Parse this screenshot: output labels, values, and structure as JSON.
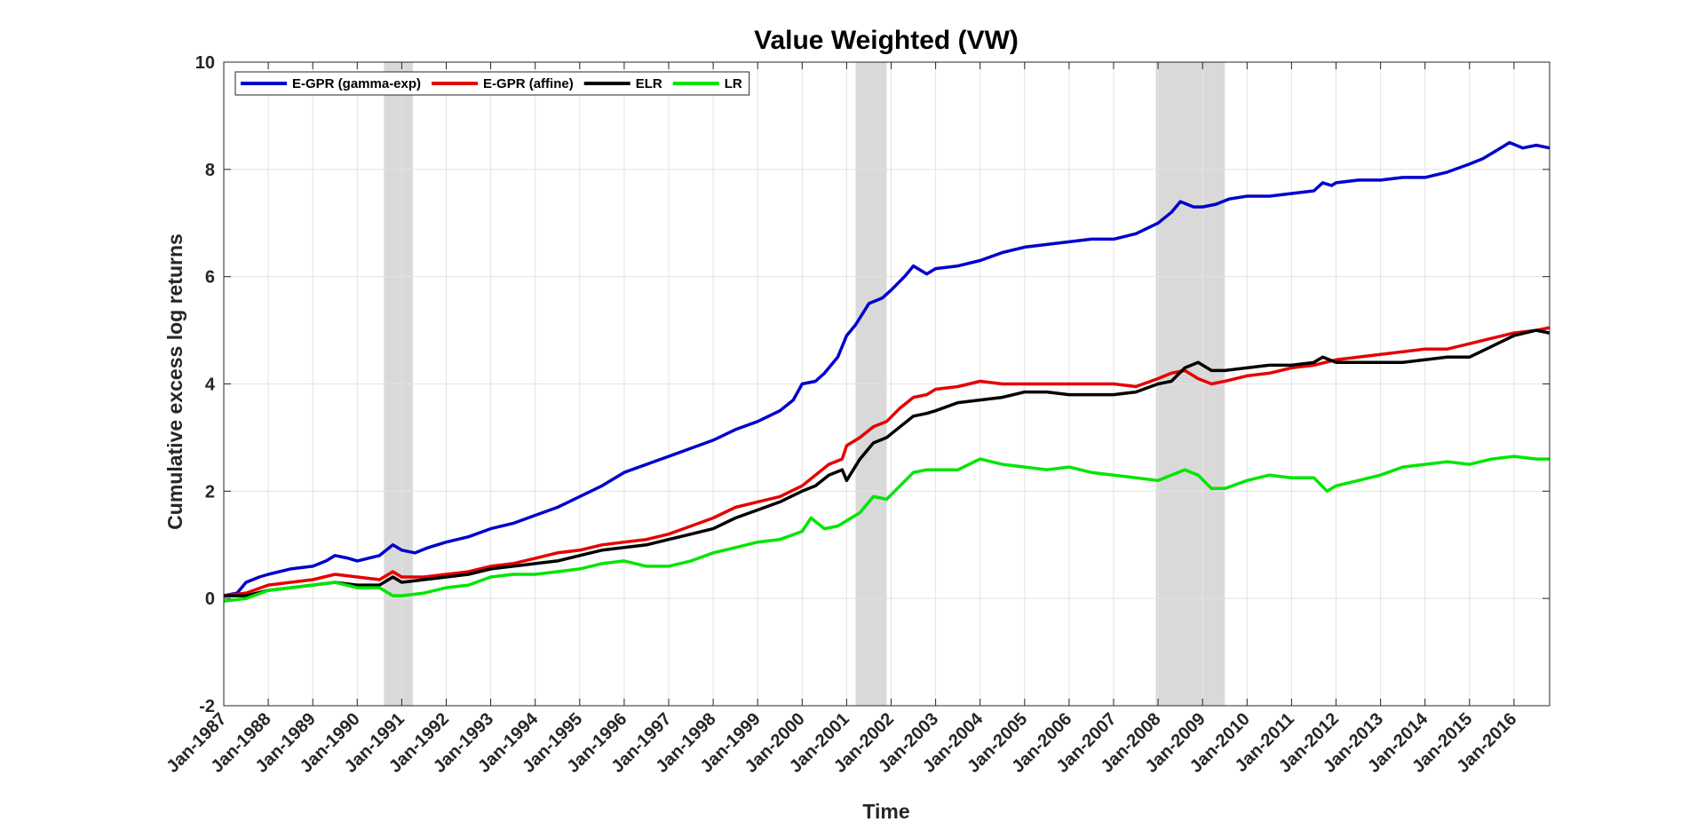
{
  "chart_data": {
    "type": "line",
    "title": "Value Weighted (VW)",
    "xlabel": "Time",
    "ylabel": "Cumulative excess log returns",
    "xlim": [
      1987.0,
      2016.8
    ],
    "ylim": [
      -2,
      10
    ],
    "yticks": [
      -2,
      0,
      2,
      4,
      6,
      8,
      10
    ],
    "xticks": [
      1987,
      1988,
      1989,
      1990,
      1991,
      1992,
      1993,
      1994,
      1995,
      1996,
      1997,
      1998,
      1999,
      2000,
      2001,
      2002,
      2003,
      2004,
      2005,
      2006,
      2007,
      2008,
      2009,
      2010,
      2011,
      2012,
      2013,
      2014,
      2015,
      2016
    ],
    "xtick_labels": [
      "Jan-1987",
      "Jan-1988",
      "Jan-1989",
      "Jan-1990",
      "Jan-1991",
      "Jan-1992",
      "Jan-1993",
      "Jan-1994",
      "Jan-1995",
      "Jan-1996",
      "Jan-1997",
      "Jan-1998",
      "Jan-1999",
      "Jan-2000",
      "Jan-2001",
      "Jan-2002",
      "Jan-2003",
      "Jan-2004",
      "Jan-2005",
      "Jan-2006",
      "Jan-2007",
      "Jan-2008",
      "Jan-2009",
      "Jan-2010",
      "Jan-2011",
      "Jan-2012",
      "Jan-2013",
      "Jan-2014",
      "Jan-2015",
      "Jan-2016"
    ],
    "grid": true,
    "legend_position": "top-left",
    "recessions": [
      {
        "start": 1990.6,
        "end": 1991.25
      },
      {
        "start": 2001.2,
        "end": 2001.9
      },
      {
        "start": 2007.95,
        "end": 2009.5
      }
    ],
    "series": [
      {
        "name": "E-GPR (gamma-exp)",
        "color": "#0000cc",
        "x": [
          1987.0,
          1987.3,
          1987.5,
          1987.8,
          1988.0,
          1988.5,
          1989.0,
          1989.3,
          1989.5,
          1989.8,
          1990.0,
          1990.5,
          1990.8,
          1991.0,
          1991.3,
          1991.6,
          1992.0,
          1992.5,
          1993.0,
          1993.5,
          1994.0,
          1994.5,
          1995.0,
          1995.5,
          1996.0,
          1996.5,
          1997.0,
          1997.5,
          1998.0,
          1998.5,
          1999.0,
          1999.5,
          1999.8,
          2000.0,
          2000.3,
          2000.5,
          2000.8,
          2001.0,
          2001.2,
          2001.5,
          2001.8,
          2002.0,
          2002.3,
          2002.5,
          2002.8,
          2003.0,
          2003.5,
          2004.0,
          2004.5,
          2005.0,
          2005.5,
          2006.0,
          2006.5,
          2007.0,
          2007.5,
          2008.0,
          2008.3,
          2008.5,
          2008.8,
          2009.0,
          2009.3,
          2009.6,
          2010.0,
          2010.5,
          2011.0,
          2011.5,
          2011.7,
          2011.9,
          2012.0,
          2012.5,
          2013.0,
          2013.5,
          2014.0,
          2014.5,
          2015.0,
          2015.3,
          2015.6,
          2015.9,
          2016.2,
          2016.5,
          2016.8
        ],
        "values": [
          0.05,
          0.1,
          0.3,
          0.4,
          0.45,
          0.55,
          0.6,
          0.7,
          0.8,
          0.75,
          0.7,
          0.8,
          1.0,
          0.9,
          0.85,
          0.95,
          1.05,
          1.15,
          1.3,
          1.4,
          1.55,
          1.7,
          1.9,
          2.1,
          2.35,
          2.5,
          2.65,
          2.8,
          2.95,
          3.15,
          3.3,
          3.5,
          3.7,
          4.0,
          4.05,
          4.2,
          4.5,
          4.9,
          5.1,
          5.5,
          5.6,
          5.75,
          6.0,
          6.2,
          6.05,
          6.15,
          6.2,
          6.3,
          6.45,
          6.55,
          6.6,
          6.65,
          6.7,
          6.7,
          6.8,
          7.0,
          7.2,
          7.4,
          7.3,
          7.3,
          7.35,
          7.45,
          7.5,
          7.5,
          7.55,
          7.6,
          7.75,
          7.7,
          7.75,
          7.8,
          7.8,
          7.85,
          7.85,
          7.95,
          8.1,
          8.2,
          8.35,
          8.5,
          8.4,
          8.45,
          8.4
        ]
      },
      {
        "name": "E-GPR (affine)",
        "color": "#e60000",
        "x": [
          1987.0,
          1987.5,
          1988.0,
          1988.5,
          1989.0,
          1989.5,
          1990.0,
          1990.5,
          1990.8,
          1991.0,
          1991.5,
          1992.0,
          1992.5,
          1993.0,
          1993.5,
          1994.0,
          1994.5,
          1995.0,
          1995.5,
          1996.0,
          1996.5,
          1997.0,
          1997.5,
          1998.0,
          1998.5,
          1999.0,
          1999.5,
          2000.0,
          2000.3,
          2000.6,
          2000.9,
          2001.0,
          2001.3,
          2001.6,
          2001.9,
          2002.2,
          2002.5,
          2002.8,
          2003.0,
          2003.5,
          2004.0,
          2004.5,
          2005.0,
          2005.5,
          2006.0,
          2006.5,
          2007.0,
          2007.5,
          2008.0,
          2008.3,
          2008.6,
          2008.9,
          2009.2,
          2009.5,
          2010.0,
          2010.5,
          2011.0,
          2011.5,
          2012.0,
          2012.5,
          2013.0,
          2013.5,
          2014.0,
          2014.5,
          2015.0,
          2015.5,
          2016.0,
          2016.5,
          2016.8
        ],
        "values": [
          0.05,
          0.1,
          0.25,
          0.3,
          0.35,
          0.45,
          0.4,
          0.35,
          0.5,
          0.4,
          0.4,
          0.45,
          0.5,
          0.6,
          0.65,
          0.75,
          0.85,
          0.9,
          1.0,
          1.05,
          1.1,
          1.2,
          1.35,
          1.5,
          1.7,
          1.8,
          1.9,
          2.1,
          2.3,
          2.5,
          2.6,
          2.85,
          3.0,
          3.2,
          3.3,
          3.55,
          3.75,
          3.8,
          3.9,
          3.95,
          4.05,
          4.0,
          4.0,
          4.0,
          4.0,
          4.0,
          4.0,
          3.95,
          4.1,
          4.2,
          4.25,
          4.1,
          4.0,
          4.05,
          4.15,
          4.2,
          4.3,
          4.35,
          4.45,
          4.5,
          4.55,
          4.6,
          4.65,
          4.65,
          4.75,
          4.85,
          4.95,
          5.0,
          5.05
        ]
      },
      {
        "name": "ELR",
        "color": "#000000",
        "x": [
          1987.0,
          1987.5,
          1988.0,
          1988.5,
          1989.0,
          1989.5,
          1990.0,
          1990.5,
          1990.8,
          1991.0,
          1991.5,
          1992.0,
          1992.5,
          1993.0,
          1993.5,
          1994.0,
          1994.5,
          1995.0,
          1995.5,
          1996.0,
          1996.5,
          1997.0,
          1997.5,
          1998.0,
          1998.5,
          1999.0,
          1999.5,
          2000.0,
          2000.3,
          2000.6,
          2000.9,
          2001.0,
          2001.3,
          2001.6,
          2001.9,
          2002.2,
          2002.5,
          2002.8,
          2003.0,
          2003.5,
          2004.0,
          2004.5,
          2005.0,
          2005.5,
          2006.0,
          2006.5,
          2007.0,
          2007.5,
          2008.0,
          2008.3,
          2008.6,
          2008.9,
          2009.2,
          2009.5,
          2010.0,
          2010.5,
          2011.0,
          2011.5,
          2011.7,
          2012.0,
          2012.5,
          2013.0,
          2013.5,
          2014.0,
          2014.5,
          2015.0,
          2015.5,
          2016.0,
          2016.5,
          2016.8
        ],
        "values": [
          0.05,
          0.05,
          0.15,
          0.2,
          0.25,
          0.3,
          0.25,
          0.25,
          0.4,
          0.3,
          0.35,
          0.4,
          0.45,
          0.55,
          0.6,
          0.65,
          0.7,
          0.8,
          0.9,
          0.95,
          1.0,
          1.1,
          1.2,
          1.3,
          1.5,
          1.65,
          1.8,
          2.0,
          2.1,
          2.3,
          2.4,
          2.2,
          2.6,
          2.9,
          3.0,
          3.2,
          3.4,
          3.45,
          3.5,
          3.65,
          3.7,
          3.75,
          3.85,
          3.85,
          3.8,
          3.8,
          3.8,
          3.85,
          4.0,
          4.05,
          4.3,
          4.4,
          4.25,
          4.25,
          4.3,
          4.35,
          4.35,
          4.4,
          4.5,
          4.4,
          4.4,
          4.4,
          4.4,
          4.45,
          4.5,
          4.5,
          4.7,
          4.9,
          5.0,
          4.95
        ]
      },
      {
        "name": "LR",
        "color": "#00e600",
        "x": [
          1987.0,
          1987.5,
          1988.0,
          1988.5,
          1989.0,
          1989.5,
          1990.0,
          1990.5,
          1990.8,
          1991.0,
          1991.5,
          1992.0,
          1992.5,
          1993.0,
          1993.5,
          1994.0,
          1994.5,
          1995.0,
          1995.5,
          1996.0,
          1996.5,
          1997.0,
          1997.5,
          1998.0,
          1998.5,
          1999.0,
          1999.5,
          2000.0,
          2000.2,
          2000.5,
          2000.8,
          2001.0,
          2001.3,
          2001.6,
          2001.9,
          2002.2,
          2002.5,
          2002.8,
          2003.0,
          2003.5,
          2004.0,
          2004.5,
          2005.0,
          2005.5,
          2006.0,
          2006.5,
          2007.0,
          2007.5,
          2008.0,
          2008.3,
          2008.6,
          2008.9,
          2009.2,
          2009.5,
          2010.0,
          2010.5,
          2011.0,
          2011.5,
          2011.8,
          2012.0,
          2012.5,
          2013.0,
          2013.5,
          2014.0,
          2014.5,
          2015.0,
          2015.5,
          2016.0,
          2016.5,
          2016.8
        ],
        "values": [
          -0.05,
          0.0,
          0.15,
          0.2,
          0.25,
          0.3,
          0.2,
          0.2,
          0.05,
          0.05,
          0.1,
          0.2,
          0.25,
          0.4,
          0.45,
          0.45,
          0.5,
          0.55,
          0.65,
          0.7,
          0.6,
          0.6,
          0.7,
          0.85,
          0.95,
          1.05,
          1.1,
          1.25,
          1.5,
          1.3,
          1.35,
          1.45,
          1.6,
          1.9,
          1.85,
          2.1,
          2.35,
          2.4,
          2.4,
          2.4,
          2.6,
          2.5,
          2.45,
          2.4,
          2.45,
          2.35,
          2.3,
          2.25,
          2.2,
          2.3,
          2.4,
          2.3,
          2.05,
          2.05,
          2.2,
          2.3,
          2.25,
          2.25,
          2.0,
          2.1,
          2.2,
          2.3,
          2.45,
          2.5,
          2.55,
          2.5,
          2.6,
          2.65,
          2.6,
          2.6
        ]
      }
    ]
  }
}
